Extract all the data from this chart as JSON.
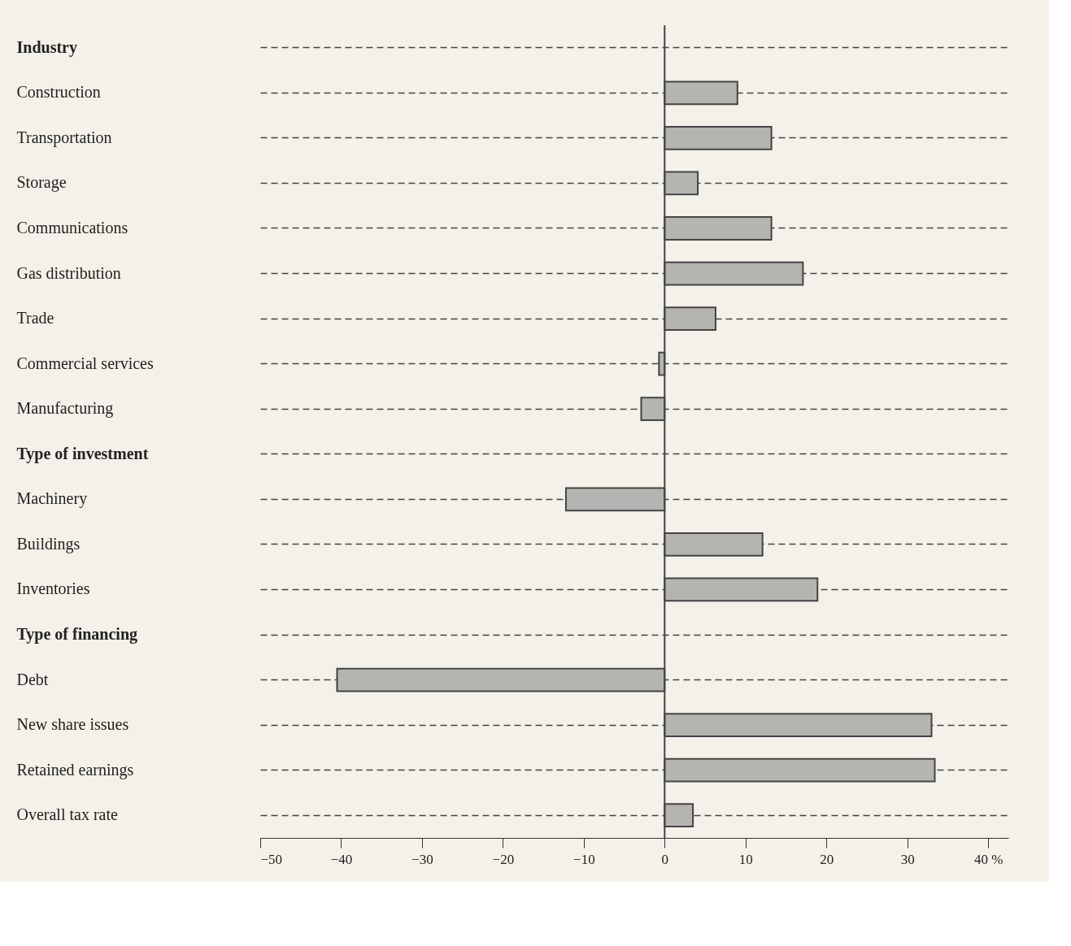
{
  "chart_data": {
    "type": "bar",
    "orientation": "horizontal",
    "categories": [
      "Industry",
      "Construction",
      "Transportation",
      "Storage",
      "Communications",
      "Gas distribution",
      "Trade",
      "Commercial services",
      "Manufacturing",
      "Type of investment",
      "Machinery",
      "Buildings",
      "Inventories",
      "Type of financing",
      "Debt",
      "New share issues",
      "Retained earnings",
      "Overall tax rate"
    ],
    "values": [
      null,
      9.0,
      13.2,
      4.1,
      13.2,
      17.1,
      6.3,
      -0.7,
      -2.9,
      null,
      -12.2,
      12.1,
      18.9,
      null,
      -40.5,
      33.0,
      33.4,
      3.5
    ],
    "color": "#b4b4b0",
    "xlim": [
      -50,
      42.5
    ],
    "xticks": [
      -50,
      -40,
      -30,
      -20,
      -10,
      0,
      10,
      20,
      30,
      {
        "value": 40,
        "label": "40 %"
      }
    ],
    "grid": "y",
    "line_style": "dashed"
  }
}
